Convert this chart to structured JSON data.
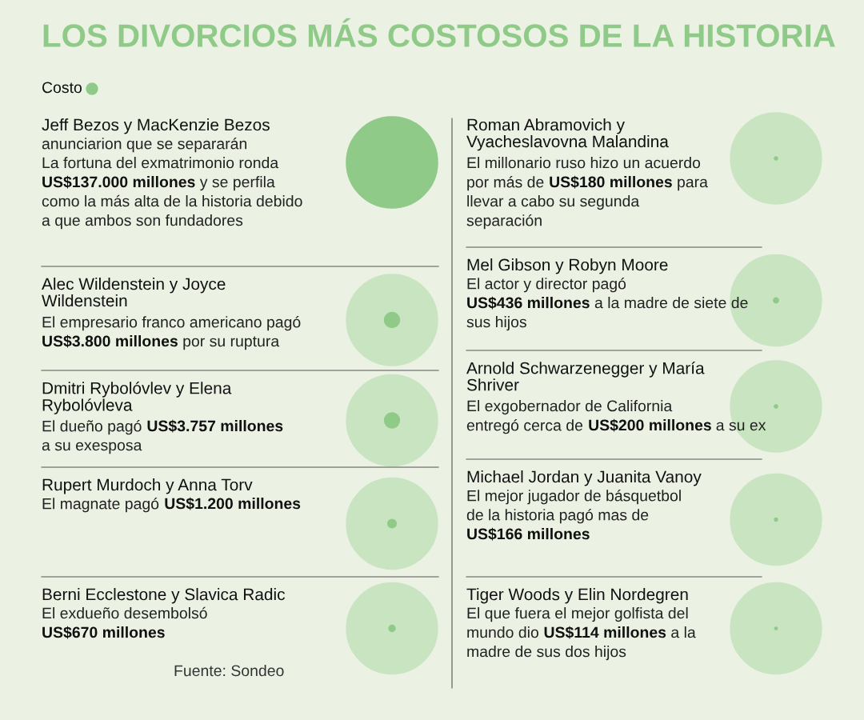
{
  "chart_data": {
    "type": "other",
    "title": "LOS DIVORCIOS MÁS COSTOSOS DE LA HISTORIA",
    "legend_title": "Costo",
    "color": "#8fca88",
    "categories": [
      "Jeff Bezos y MacKenzie Bezos",
      "Alec Wildenstein y Joyce\nWildenstein",
      "Dmitri Rybolóvlev y Elena\nRybolóvleva",
      "Rupert Murdoch y Anna Torv",
      "Berni Ecclestone y Slavica Radic",
      "Roman Abramovich y\nVyacheslavovna Malandina",
      "Mel Gibson y Robyn Moore",
      "Arnold Schwarzenegger y María\nShriver",
      "Michael Jordan y Juanita Vanoy",
      "Tiger Woods y Elin Nordegren"
    ],
    "values": [
      137000,
      3800,
      3757,
      1200,
      670,
      180,
      436,
      200,
      166,
      114
    ],
    "value_labels": [
      "US$137.000 millones",
      "US$3.800 millones",
      "US$3.757 millones",
      "US$1.200 millones",
      "US$670 millones",
      "US$180 millones",
      "US$436 millones",
      "US$200 millones",
      "US$166 millones",
      "US$114 millones"
    ],
    "annotations": [
      "anunciarion que se separarán\nLa fortuna del exmatrimonio ronda\n\ny se perfila\ncomo la más alta de la historia debido\na que ambos son fundadores",
      "El empresario franco americano pagó\n\npor su ruptura",
      "El dueño pagó\n\na su exesposa",
      "El magnate pagó",
      "El exdueño desembolsó",
      "El millonario ruso hizo un acuerdo\npor más de\n\npara\nllevar a cabo su segunda\nseparación",
      "El actor y director pagó\n\na la madre de siete de\nsus hijos",
      "El exgobernador de California\nentregó cerca de\n\na su ex",
      "El mejor jugador de básquetbol\nde la historia pagó mas de",
      "El que fuera el mejor golfista del\nmundo dio\n\na la\nmadre de sus dos hijos",
      "Fuente: Sondeo"
    ]
  }
}
